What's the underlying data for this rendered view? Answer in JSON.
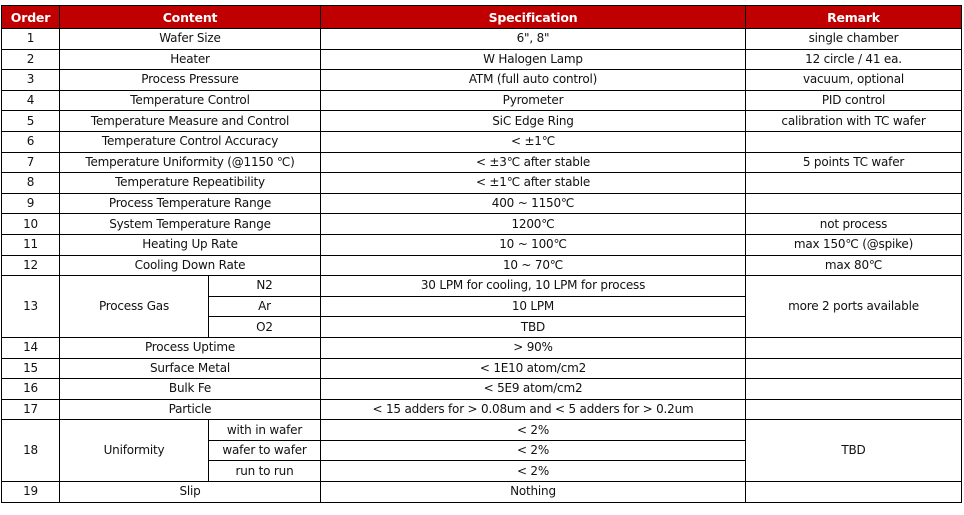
{
  "header": {
    "order": "Order",
    "content": "Content",
    "specification": "Specification",
    "remark": "Remark"
  },
  "colors": {
    "header_bg": "#c00000",
    "header_text": "#ffffff"
  },
  "rows": [
    {
      "order": "1",
      "content": "Wafer Size",
      "spec": "6\", 8\"",
      "remark": "single chamber"
    },
    {
      "order": "2",
      "content": "Heater",
      "spec": "W Halogen Lamp",
      "remark": "12 circle / 41 ea."
    },
    {
      "order": "3",
      "content": "Process Pressure",
      "spec": "ATM (full auto control)",
      "remark": "vacuum, optional"
    },
    {
      "order": "4",
      "content": "Temperature Control",
      "spec": "Pyrometer",
      "remark": "PID control"
    },
    {
      "order": "5",
      "content": "Temperature Measure and Control",
      "spec": "SiC Edge Ring",
      "remark": "calibration with TC wafer"
    },
    {
      "order": "6",
      "content": "Temperature Control Accuracy",
      "spec": "< ±1℃",
      "remark": ""
    },
    {
      "order": "7",
      "content": "Temperature Uniformity (@1150 ℃)",
      "spec": "< ±3℃ after stable",
      "remark": "5 points TC wafer"
    },
    {
      "order": "8",
      "content": "Temperature Repeatibility",
      "spec": "< ±1℃ after stable",
      "remark": ""
    },
    {
      "order": "9",
      "content": "Process Temperature Range",
      "spec": "400 ~ 1150℃",
      "remark": ""
    },
    {
      "order": "10",
      "content": "System Temperature Range",
      "spec": "1200℃",
      "remark": "not process"
    },
    {
      "order": "11",
      "content": "Heating Up Rate",
      "spec": "10 ~ 100℃",
      "remark": "max 150℃ (@spike)"
    },
    {
      "order": "12",
      "content": "Cooling Down Rate",
      "spec": "10 ~ 70℃",
      "remark": "max 80℃"
    },
    {
      "order": "13",
      "content": "Process Gas",
      "remark": "more 2 ports available",
      "sub": [
        {
          "label": "N2",
          "spec": "30 LPM for cooling, 10 LPM for process"
        },
        {
          "label": "Ar",
          "spec": "10 LPM"
        },
        {
          "label": "O2",
          "spec": "TBD"
        }
      ]
    },
    {
      "order": "14",
      "content": "Process Uptime",
      "spec": "> 90%",
      "remark": ""
    },
    {
      "order": "15",
      "content": "Surface Metal",
      "spec": "< 1E10 atom/cm2",
      "remark": ""
    },
    {
      "order": "16",
      "content": "Bulk Fe",
      "spec": "< 5E9 atom/cm2",
      "remark": ""
    },
    {
      "order": "17",
      "content": "Particle",
      "spec": "< 15 adders for  > 0.08um and  < 5 adders for  > 0.2um",
      "remark": ""
    },
    {
      "order": "18",
      "content": "Uniformity",
      "remark": "TBD",
      "sub": [
        {
          "label": "with in wafer",
          "spec": "< 2%"
        },
        {
          "label": "wafer to wafer",
          "spec": "< 2%"
        },
        {
          "label": "run to run",
          "spec": "< 2%"
        }
      ]
    },
    {
      "order": "19",
      "content": "Slip",
      "spec": "Nothing",
      "remark": ""
    }
  ]
}
